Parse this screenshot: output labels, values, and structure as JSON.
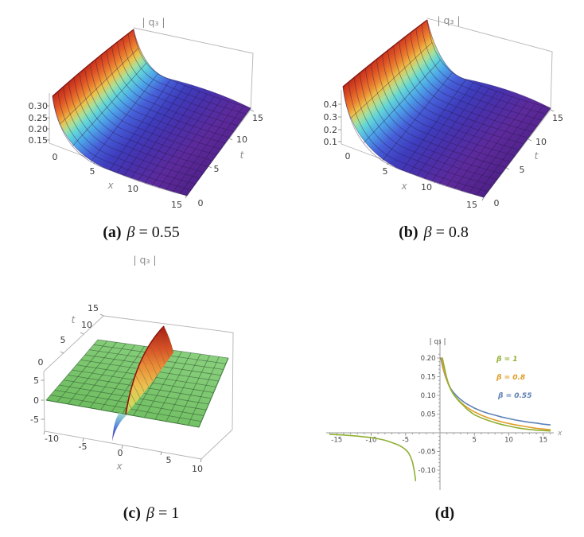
{
  "panels": {
    "a": {
      "title": "| q₃ |",
      "caption_label": "(a)",
      "caption_symbol": "β",
      "caption_rest": " = 0.55",
      "z_ticks": [
        "0.30",
        "0.25",
        "0.20",
        "0.15"
      ],
      "z_origin": "0",
      "x_axis": {
        "label": "x",
        "ticks": [
          "5",
          "10",
          "15"
        ]
      },
      "t_axis": {
        "label": "t",
        "ticks": [
          "0",
          "5",
          "10",
          "15"
        ]
      }
    },
    "b": {
      "title": "| q₃ |",
      "caption_label": "(b)",
      "caption_symbol": "β",
      "caption_rest": " = 0.8",
      "z_ticks": [
        "0.4",
        "0.3",
        "0.2",
        "0.1"
      ],
      "z_origin": "0",
      "x_axis": {
        "label": "x",
        "ticks": [
          "5",
          "10",
          "15"
        ]
      },
      "t_axis": {
        "label": "t",
        "ticks": [
          "0",
          "5",
          "10",
          "15"
        ]
      }
    },
    "c": {
      "title": "| q₃ |",
      "caption_label": "(c)",
      "caption_symbol": "β",
      "caption_rest": " = 1",
      "z_ticks": [
        "5",
        "0",
        "-5"
      ],
      "x_axis": {
        "label": "x",
        "ticks": [
          "-10",
          "-5",
          "0",
          "5",
          "10"
        ]
      },
      "t_axis": {
        "label": "t",
        "ticks": [
          "0",
          "5",
          "10",
          "15"
        ]
      }
    },
    "d": {
      "title": "| q₃ |",
      "caption_label": "(d)",
      "caption_symbol": "",
      "caption_rest": "",
      "x_label": "x",
      "legend": [
        {
          "label": "β = 1",
          "color": "#8fb032"
        },
        {
          "label": "β = 0.8",
          "color": "#e19c24"
        },
        {
          "label": "β = 0.55",
          "color": "#5e81b5"
        }
      ]
    }
  },
  "chart_data": [
    {
      "panel": "a",
      "type": "surface3d",
      "title": "|q3|",
      "caption": "(a) β = 0.55",
      "x_range": [
        0,
        15
      ],
      "t_range": [
        0,
        15
      ],
      "z_ticks": [
        0.15,
        0.2,
        0.25,
        0.3
      ],
      "colormap": "rainbow (red = high, purple = low)",
      "description": "|q3(x,t)| with ridge along x=0 near z≈0.33 decaying monotonically in x to ≈0.1; nearly uniform in t."
    },
    {
      "panel": "b",
      "type": "surface3d",
      "title": "|q3|",
      "caption": "(b) β = 0.8",
      "x_range": [
        0,
        15
      ],
      "t_range": [
        0,
        15
      ],
      "z_ticks": [
        0.1,
        0.2,
        0.3,
        0.4
      ],
      "colormap": "rainbow (red = high, purple = low)",
      "description": "|q3(x,t)| with ridge along x=0 near z≈0.45 decaying monotonically in x to ≈0.1; nearly uniform in t."
    },
    {
      "panel": "c",
      "type": "surface3d",
      "title": "|q3|",
      "caption": "(c) β = 1",
      "x_range": [
        -10,
        10
      ],
      "t_range": [
        0,
        15
      ],
      "z_ticks": [
        -5,
        0,
        5
      ],
      "colormap": "green plane with rainbow soliton wall",
      "description": "Flat plane at z≈0 with a diagonal singular wall near x≈0: positive red/orange ridge up to z≈+5 toward t=15 and a negative blue/purple dip to z≈-5 near t=0."
    },
    {
      "panel": "d",
      "type": "line",
      "xlabel": "x",
      "ylabel": "|q3|",
      "x_range": [
        -16.5,
        16.5
      ],
      "y_range": [
        -0.15,
        0.22
      ],
      "x_tick_values": [
        -15,
        -10,
        -5,
        5,
        10,
        15
      ],
      "x_tick_labels": [
        "-15",
        "-10",
        "-5",
        "5",
        "10",
        "15"
      ],
      "y_tick_values": [
        0.2,
        0.15,
        0.1,
        0.05,
        -0.05,
        -0.1
      ],
      "y_tick_labels": [
        "0.20",
        "0.15",
        "0.10",
        "0.05",
        "-0.05",
        "-0.10"
      ],
      "legend_position": "upper right",
      "series": [
        {
          "label": "β = 1",
          "color": "#8fb032",
          "segments": [
            [
              [
                0.35,
                0.2
              ],
              [
                0.6,
                0.178
              ],
              [
                0.9,
                0.152
              ],
              [
                1.2,
                0.133
              ],
              [
                1.6,
                0.115
              ],
              [
                2,
                0.102
              ],
              [
                2.5,
                0.09
              ],
              [
                3,
                0.08
              ],
              [
                3.5,
                0.071
              ],
              [
                4,
                0.062
              ],
              [
                4.5,
                0.055
              ],
              [
                5,
                0.048
              ],
              [
                5.5,
                0.044
              ],
              [
                6,
                0.04
              ],
              [
                7,
                0.033
              ],
              [
                8,
                0.027
              ],
              [
                9,
                0.022
              ],
              [
                10,
                0.018
              ],
              [
                11,
                0.014
              ],
              [
                12,
                0.011
              ],
              [
                13,
                0.009
              ],
              [
                14,
                0.007
              ],
              [
                15,
                0.006
              ],
              [
                16,
                0.005
              ]
            ],
            [
              [
                -16,
                -0.004
              ],
              [
                -14,
                -0.006
              ],
              [
                -12,
                -0.009
              ],
              [
                -10,
                -0.013
              ],
              [
                -9,
                -0.016
              ],
              [
                -8,
                -0.02
              ],
              [
                -7,
                -0.026
              ],
              [
                -6,
                -0.033
              ],
              [
                -5.5,
                -0.038
              ],
              [
                -5,
                -0.045
              ],
              [
                -4.6,
                -0.053
              ],
              [
                -4.3,
                -0.063
              ],
              [
                -4.0,
                -0.078
              ],
              [
                -3.8,
                -0.095
              ],
              [
                -3.65,
                -0.112
              ],
              [
                -3.55,
                -0.128
              ]
            ]
          ]
        },
        {
          "label": "β = 0.8",
          "color": "#e19c24",
          "segments": [
            [
              [
                0.2,
                0.2
              ],
              [
                0.5,
                0.172
              ],
              [
                0.9,
                0.146
              ],
              [
                1.3,
                0.126
              ],
              [
                1.7,
                0.111
              ],
              [
                2,
                0.102
              ],
              [
                2.5,
                0.091
              ],
              [
                3,
                0.082
              ],
              [
                3.5,
                0.074
              ],
              [
                4,
                0.067
              ],
              [
                4.5,
                0.061
              ],
              [
                5,
                0.056
              ],
              [
                6,
                0.047
              ],
              [
                7,
                0.04
              ],
              [
                8,
                0.034
              ],
              [
                9,
                0.029
              ],
              [
                10,
                0.025
              ],
              [
                11,
                0.021
              ],
              [
                12,
                0.018
              ],
              [
                13,
                0.015
              ],
              [
                14,
                0.012
              ],
              [
                15,
                0.01
              ],
              [
                16,
                0.008
              ]
            ]
          ]
        },
        {
          "label": "β = 0.55",
          "color": "#5e81b5",
          "segments": [
            [
              [
                0.12,
                0.2
              ],
              [
                0.4,
                0.175
              ],
              [
                0.8,
                0.15
              ],
              [
                1.2,
                0.131
              ],
              [
                1.6,
                0.117
              ],
              [
                2,
                0.107
              ],
              [
                2.5,
                0.097
              ],
              [
                3,
                0.089
              ],
              [
                3.5,
                0.082
              ],
              [
                4,
                0.076
              ],
              [
                4.5,
                0.071
              ],
              [
                5,
                0.066
              ],
              [
                6,
                0.058
              ],
              [
                7,
                0.052
              ],
              [
                8,
                0.047
              ],
              [
                9,
                0.042
              ],
              [
                10,
                0.038
              ],
              [
                11,
                0.034
              ],
              [
                12,
                0.031
              ],
              [
                13,
                0.028
              ],
              [
                14,
                0.026
              ],
              [
                15,
                0.023
              ],
              [
                16,
                0.021
              ]
            ]
          ]
        }
      ]
    }
  ]
}
